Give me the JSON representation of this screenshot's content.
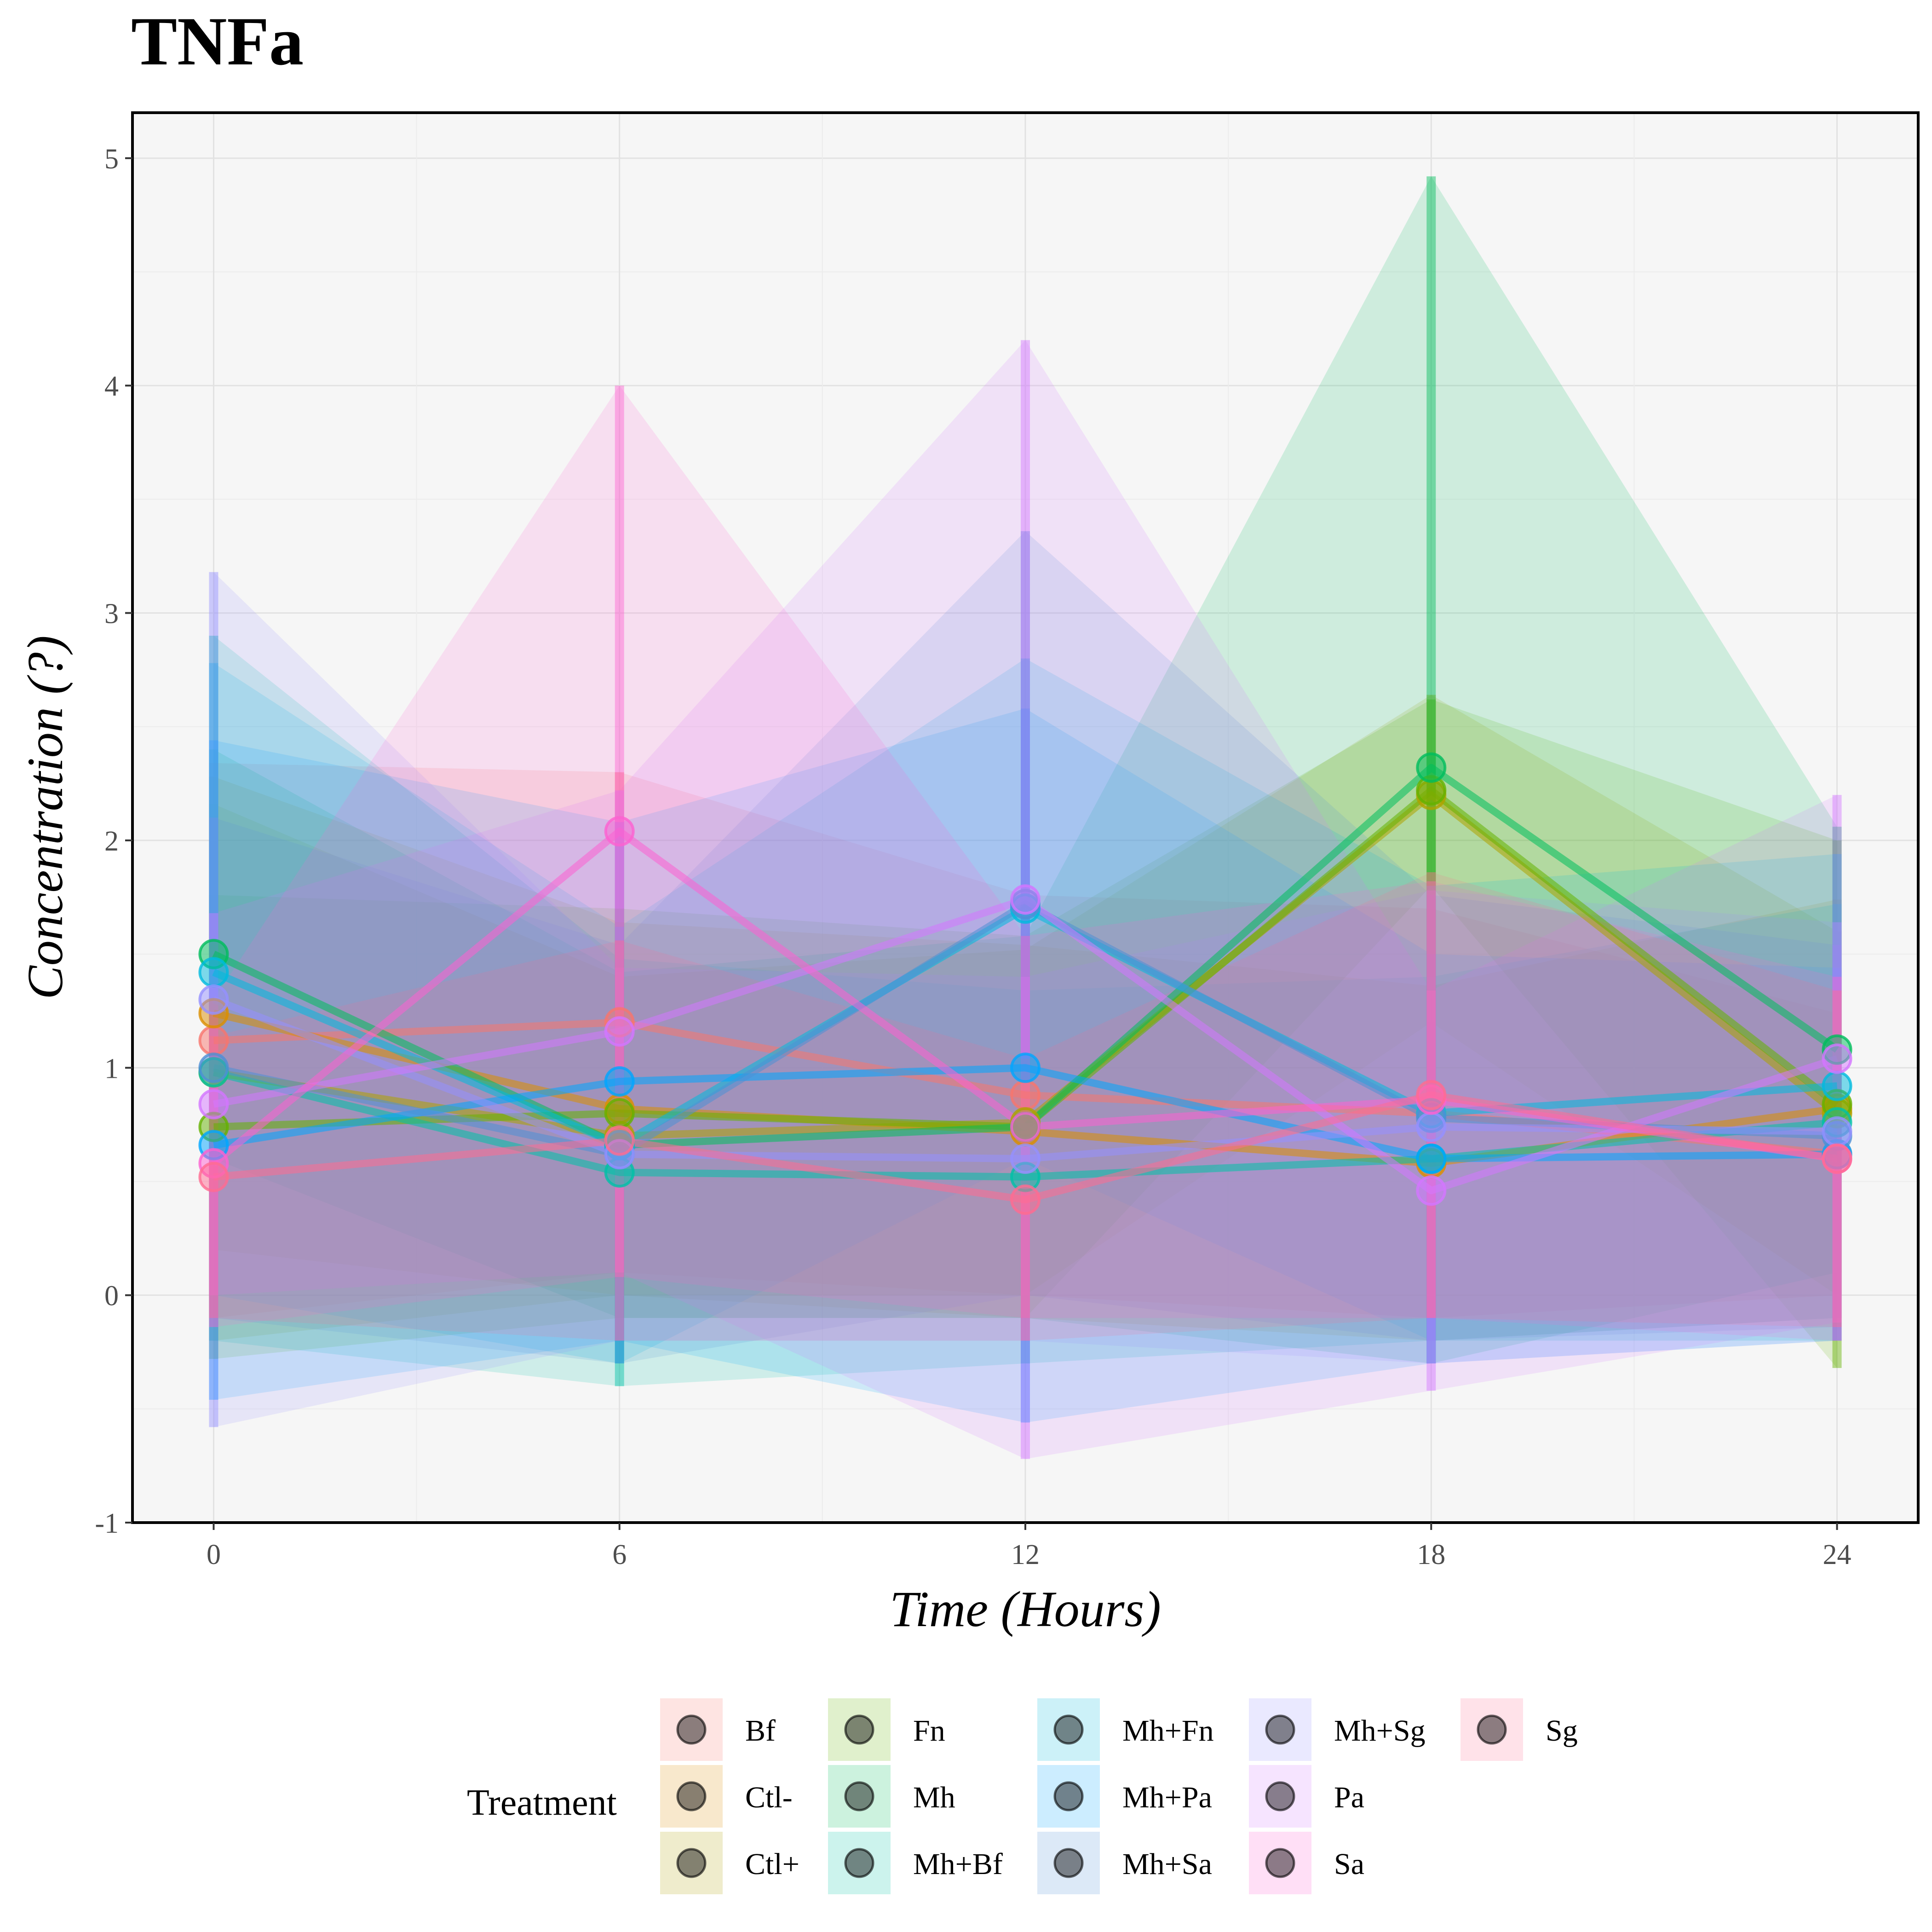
{
  "chart_data": {
    "type": "line",
    "title": "TNFa",
    "xlabel": "Time (Hours)",
    "ylabel": "Concentration (?)",
    "x": [
      0,
      6,
      12,
      18,
      24
    ],
    "x_ticks": [
      "0",
      "6",
      "12",
      "18",
      "24"
    ],
    "xlim": [
      -1.2,
      25.2
    ],
    "ylim": [
      -1,
      5.2
    ],
    "y_ticks": [
      "-1",
      "0",
      "1",
      "2",
      "3",
      "4",
      "5"
    ],
    "grid": true,
    "legend": {
      "title": "Treatment",
      "placement": "bottom",
      "columns": [
        [
          "Bf",
          "Ctl-",
          "Ctl+"
        ],
        [
          "Fn",
          "Mh",
          "Mh+Bf"
        ],
        [
          "Mh+Fn",
          "Mh+Pa",
          "Mh+Sa"
        ],
        [
          "Mh+Sg",
          "Pa",
          "Sa"
        ],
        [
          "Sg"
        ]
      ]
    },
    "series": [
      {
        "name": "Bf",
        "color": "#F8766D",
        "values": [
          1.12,
          1.2,
          0.88,
          0.8,
          0.62
        ],
        "lower": [
          -0.1,
          0.1,
          0.0,
          -0.1,
          0.0
        ],
        "upper": [
          2.34,
          2.3,
          1.76,
          1.7,
          1.24
        ]
      },
      {
        "name": "Ctl-",
        "color": "#DB8E00",
        "values": [
          1.24,
          0.82,
          0.72,
          0.58,
          0.82
        ],
        "lower": [
          0.2,
          0.0,
          -0.1,
          -0.2,
          -0.1
        ],
        "upper": [
          2.28,
          1.64,
          1.54,
          1.36,
          1.74
        ]
      },
      {
        "name": "Ctl+",
        "color": "#AEA200",
        "values": [
          0.98,
          0.7,
          0.76,
          2.2,
          0.8
        ],
        "lower": [
          -0.2,
          0.0,
          0.0,
          1.2,
          0.0
        ],
        "upper": [
          2.16,
          1.4,
          1.52,
          2.64,
          1.6
        ]
      },
      {
        "name": "Fn",
        "color": "#64B200",
        "values": [
          0.74,
          0.8,
          0.74,
          2.22,
          0.84
        ],
        "lower": [
          -0.28,
          -0.1,
          -0.1,
          1.8,
          -0.32
        ],
        "upper": [
          1.76,
          1.7,
          1.58,
          2.62,
          2.0
        ]
      },
      {
        "name": "Mh",
        "color": "#00BD5C",
        "values": [
          1.5,
          0.66,
          0.74,
          2.32,
          1.08
        ],
        "lower": [
          0.6,
          -0.1,
          -0.1,
          -0.3,
          0.1
        ],
        "upper": [
          2.4,
          1.42,
          1.58,
          4.92,
          2.06
        ]
      },
      {
        "name": "Mh+Bf",
        "color": "#00C1A7",
        "values": [
          0.98,
          0.54,
          0.52,
          0.6,
          0.76
        ],
        "lower": [
          -0.2,
          -0.4,
          -0.3,
          -0.2,
          -0.2
        ],
        "upper": [
          2.9,
          1.48,
          1.34,
          1.4,
          1.72
        ]
      },
      {
        "name": "Mh+Fn",
        "color": "#00BADE",
        "values": [
          1.42,
          0.66,
          1.7,
          0.8,
          0.92
        ],
        "lower": [
          0.0,
          -0.3,
          0.6,
          -0.2,
          -0.1
        ],
        "upper": [
          2.78,
          1.62,
          2.8,
          1.8,
          1.94
        ]
      },
      {
        "name": "Mh+Pa",
        "color": "#00A6FF",
        "values": [
          0.66,
          0.94,
          1.0,
          0.6,
          0.62
        ],
        "lower": [
          -0.46,
          -0.2,
          -0.56,
          -0.3,
          -0.2
        ],
        "upper": [
          2.44,
          2.08,
          2.58,
          1.5,
          1.44
        ]
      },
      {
        "name": "Mh+Sa",
        "color": "#4F8FD6",
        "values": [
          1.0,
          0.62,
          1.72,
          0.78,
          0.7
        ],
        "lower": [
          -0.1,
          -0.3,
          0.0,
          -0.2,
          -0.14
        ],
        "upper": [
          2.1,
          1.54,
          3.36,
          1.76,
          1.54
        ]
      },
      {
        "name": "Mh+Sg",
        "color": "#9590FF",
        "values": [
          1.3,
          0.62,
          0.6,
          0.74,
          0.72
        ],
        "lower": [
          -0.58,
          -0.2,
          -0.2,
          -0.3,
          -0.2
        ],
        "upper": [
          3.18,
          1.44,
          1.4,
          1.78,
          1.64
        ]
      },
      {
        "name": "Pa",
        "color": "#D376FF",
        "values": [
          0.84,
          1.16,
          1.74,
          0.46,
          1.04
        ],
        "lower": [
          0.0,
          0.1,
          -0.72,
          -0.42,
          -0.12
        ],
        "upper": [
          1.68,
          2.22,
          4.2,
          1.34,
          2.2
        ]
      },
      {
        "name": "Sa",
        "color": "#FD61D1",
        "values": [
          0.58,
          2.04,
          0.74,
          0.86,
          0.6
        ],
        "lower": [
          -0.14,
          0.08,
          -0.1,
          -0.1,
          -0.2
        ],
        "upper": [
          1.3,
          4.0,
          1.58,
          1.82,
          1.4
        ]
      },
      {
        "name": "Sg",
        "color": "#FF6C91",
        "values": [
          0.52,
          0.68,
          0.42,
          0.88,
          0.6
        ],
        "lower": [
          -0.1,
          -0.2,
          -0.2,
          -0.1,
          -0.14
        ],
        "upper": [
          1.14,
          1.56,
          1.04,
          1.86,
          1.34
        ]
      }
    ]
  }
}
